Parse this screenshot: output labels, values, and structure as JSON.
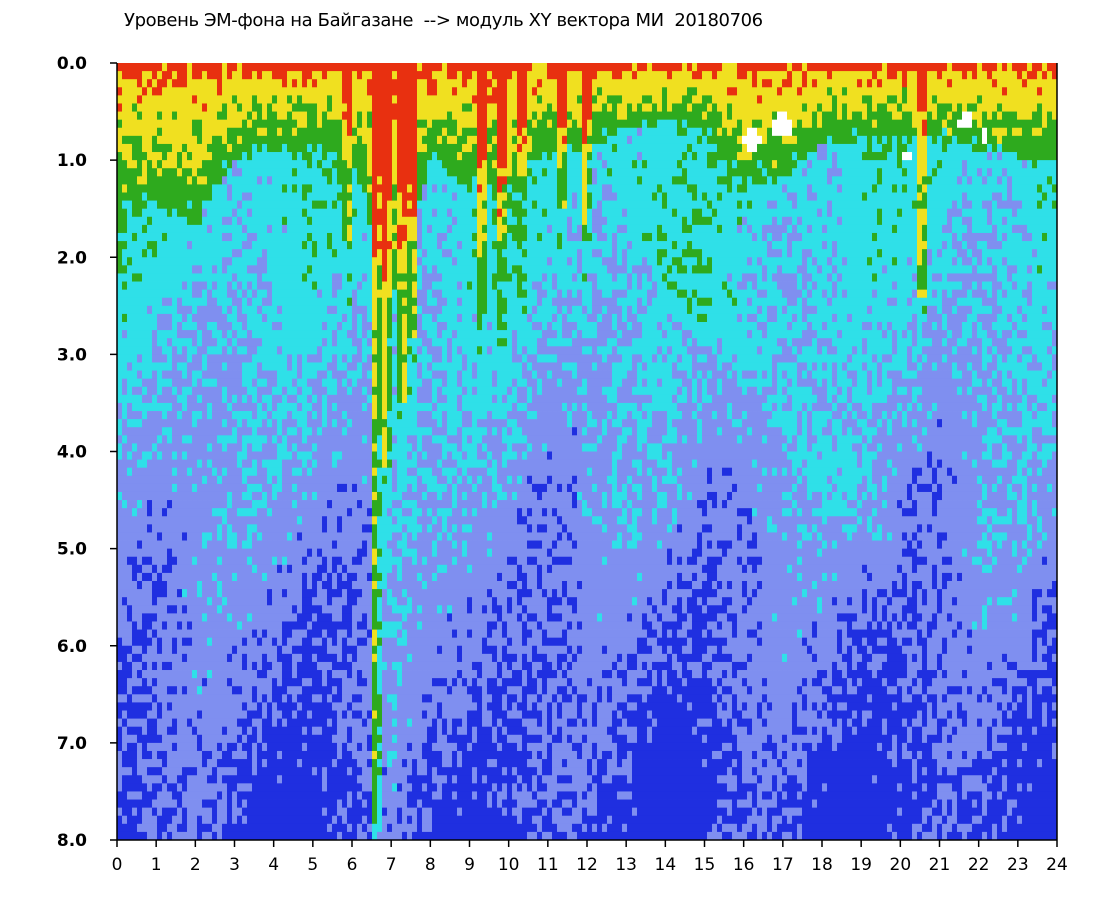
{
  "chart_data": {
    "type": "heatmap",
    "title": "Уровень ЭМ-фона на Байгазане  --> модуль XY вектора МИ  20180706",
    "xlabel": "",
    "ylabel": "",
    "x_range": [
      0,
      24
    ],
    "y_range": [
      0,
      8
    ],
    "y_axis_inverted": true,
    "grid": false,
    "x_ticks": [
      {
        "value": 0,
        "label": "0"
      },
      {
        "value": 1,
        "label": "1"
      },
      {
        "value": 2,
        "label": "2"
      },
      {
        "value": 3,
        "label": "3"
      },
      {
        "value": 4,
        "label": "4"
      },
      {
        "value": 5,
        "label": "5"
      },
      {
        "value": 6,
        "label": "6"
      },
      {
        "value": 7,
        "label": "7"
      },
      {
        "value": 8,
        "label": "8"
      },
      {
        "value": 9,
        "label": "9"
      },
      {
        "value": 10,
        "label": "10"
      },
      {
        "value": 11,
        "label": "11"
      },
      {
        "value": 12,
        "label": "12"
      },
      {
        "value": 13,
        "label": "13"
      },
      {
        "value": 14,
        "label": "14"
      },
      {
        "value": 15,
        "label": "15"
      },
      {
        "value": 16,
        "label": "16"
      },
      {
        "value": 17,
        "label": "17"
      },
      {
        "value": 18,
        "label": "18"
      },
      {
        "value": 19,
        "label": "19"
      },
      {
        "value": 20,
        "label": "20"
      },
      {
        "value": 21,
        "label": "21"
      },
      {
        "value": 22,
        "label": "22"
      },
      {
        "value": 23,
        "label": "23"
      },
      {
        "value": 24,
        "label": "24"
      }
    ],
    "y_ticks": [
      {
        "value": 0,
        "label": "0.0"
      },
      {
        "value": 1,
        "label": "1.0"
      },
      {
        "value": 2,
        "label": "2.0"
      },
      {
        "value": 3,
        "label": "3.0"
      },
      {
        "value": 4,
        "label": "4.0"
      },
      {
        "value": 5,
        "label": "5.0"
      },
      {
        "value": 6,
        "label": "6.0"
      },
      {
        "value": 7,
        "label": "7.0"
      },
      {
        "value": 8,
        "label": "8.0"
      }
    ],
    "color_scale": [
      {
        "level": "lowest",
        "color": "#1f2fe0"
      },
      {
        "level": "low",
        "color": "#7f8ff0"
      },
      {
        "level": "medium",
        "color": "#2fe0e8"
      },
      {
        "level": "elevated",
        "color": "#2eaa1e"
      },
      {
        "level": "high",
        "color": "#f0e020"
      },
      {
        "level": "highest",
        "color": "#e83010"
      },
      {
        "level": "saturated",
        "color": "#ffffff"
      }
    ],
    "intensity_profile": {
      "hours": [
        0,
        1,
        2,
        3,
        4,
        5,
        6,
        7,
        8,
        9,
        10,
        11,
        12,
        13,
        14,
        15,
        16,
        17,
        18,
        19,
        20,
        21,
        22,
        23,
        24
      ],
      "active_layer_depth": [
        1.6,
        1.5,
        1.7,
        1.0,
        0.9,
        0.9,
        1.0,
        2.5,
        1.0,
        1.3,
        1.4,
        0.9,
        0.9,
        0.7,
        0.6,
        0.7,
        1.3,
        1.2,
        0.8,
        0.8,
        0.8,
        0.8,
        0.9,
        1.0,
        1.0
      ]
    },
    "vertical_streaks": [
      {
        "x": 5.9,
        "extent": 1.8,
        "strength": 0.6
      },
      {
        "x": 6.6,
        "extent": 7.8,
        "strength": 1.0
      },
      {
        "x": 6.85,
        "extent": 4.2,
        "strength": 1.0
      },
      {
        "x": 7.3,
        "extent": 3.5,
        "strength": 0.9
      },
      {
        "x": 7.55,
        "extent": 2.8,
        "strength": 0.9
      },
      {
        "x": 9.3,
        "extent": 2.0,
        "strength": 0.9
      },
      {
        "x": 9.8,
        "extent": 1.8,
        "strength": 0.8
      },
      {
        "x": 10.35,
        "extent": 1.2,
        "strength": 0.7
      },
      {
        "x": 11.35,
        "extent": 1.5,
        "strength": 0.7
      },
      {
        "x": 11.95,
        "extent": 1.8,
        "strength": 0.8
      },
      {
        "x": 20.55,
        "extent": 2.4,
        "strength": 0.8
      }
    ],
    "saturated_spots": [
      {
        "x": 16.2,
        "y": 0.8,
        "r": 0.25
      },
      {
        "x": 17.0,
        "y": 0.65,
        "r": 0.3
      },
      {
        "x": 20.2,
        "y": 0.95,
        "r": 0.15
      },
      {
        "x": 21.7,
        "y": 0.6,
        "r": 0.2
      },
      {
        "x": 22.2,
        "y": 0.75,
        "r": 0.12
      }
    ]
  }
}
